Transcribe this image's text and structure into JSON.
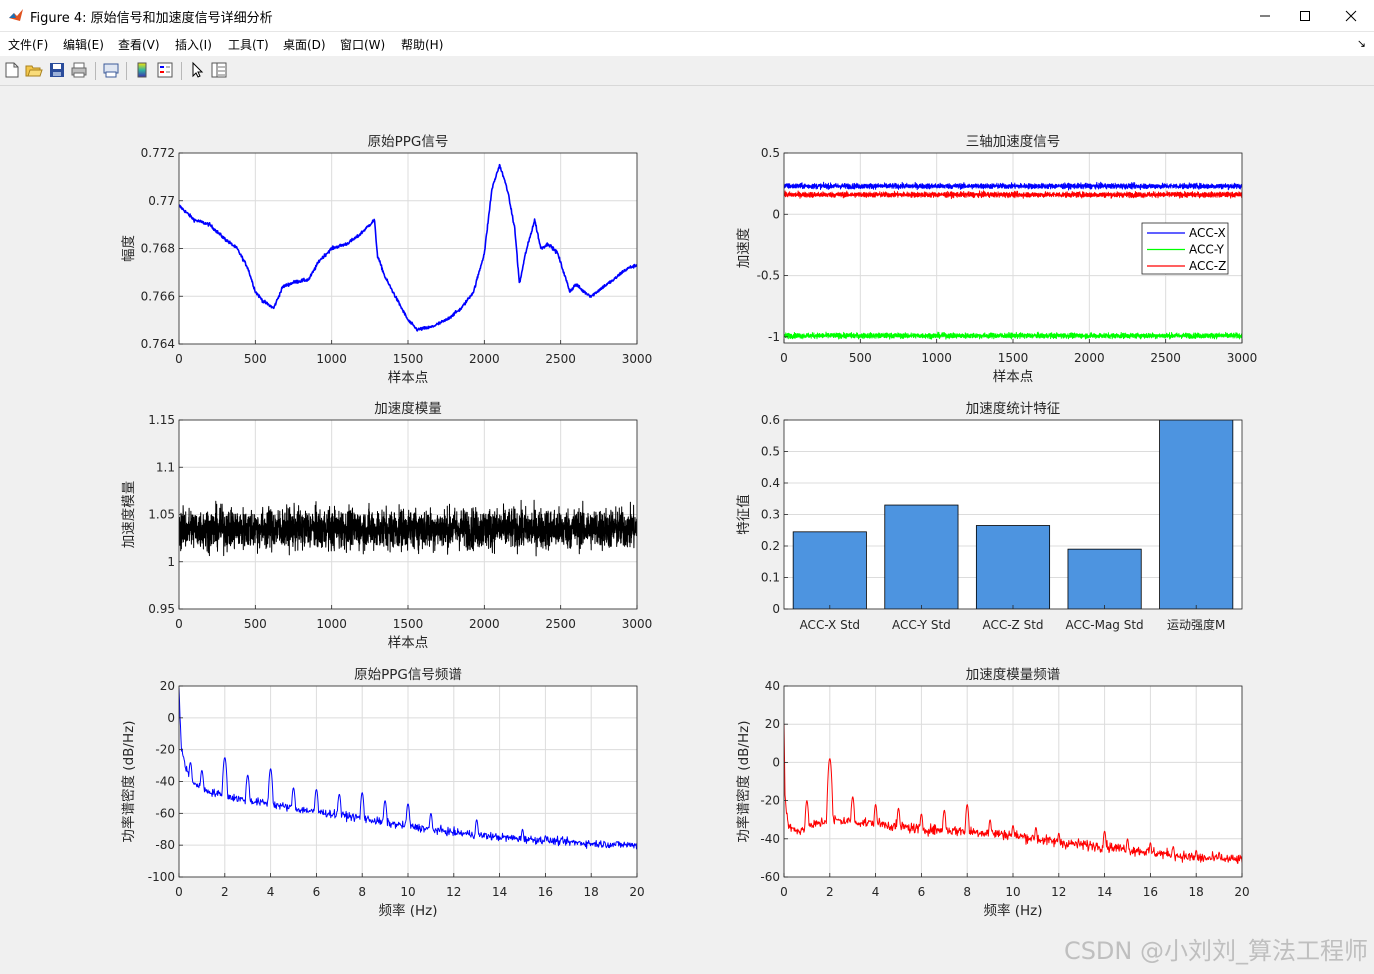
{
  "window": {
    "title": "Figure 4: 原始信号和加速度信号详细分析"
  },
  "menu": {
    "items": [
      "文件(F)",
      "编辑(E)",
      "查看(V)",
      "插入(I)",
      "工具(T)",
      "桌面(D)",
      "窗口(W)",
      "帮助(H)"
    ]
  },
  "toolbar": {
    "icons": [
      "new-figure-icon",
      "open-file-icon",
      "save-icon",
      "print-icon",
      "print-preview-icon",
      "colorbar-icon",
      "legend-icon",
      "pointer-icon",
      "property-editor-icon"
    ]
  },
  "watermark": "CSDN @小刘刘_算法工程师",
  "colors": {
    "blue": "#0000ff",
    "green": "#00ff00",
    "red": "#ff0000",
    "black": "#000000",
    "bar": "#4d94e0",
    "grid": "#dcdcdc"
  },
  "chart_data": [
    {
      "type": "line",
      "title": "原始PPG信号",
      "xlabel": "样本点",
      "ylabel": "幅度",
      "xlim": [
        0,
        3000
      ],
      "ylim": [
        0.764,
        0.772
      ],
      "xticks": [
        0,
        500,
        1000,
        1500,
        2000,
        2500,
        3000
      ],
      "xticklabels": [
        "0",
        "500",
        "1000",
        "1500",
        "2000",
        "2500",
        "3000"
      ],
      "yticks": [
        0.764,
        0.766,
        0.768,
        0.77,
        0.772
      ],
      "yticklabels": [
        "0.764",
        "0.766",
        "0.768",
        "0.77",
        "0.772"
      ],
      "grid": true,
      "series": [
        {
          "color": "#0000ff",
          "x": [
            0,
            100,
            200,
            300,
            380,
            450,
            500,
            550,
            620,
            680,
            760,
            850,
            920,
            1000,
            1100,
            1170,
            1250,
            1280,
            1300,
            1350,
            1400,
            1450,
            1500,
            1560,
            1650,
            1750,
            1850,
            1930,
            2000,
            2050,
            2100,
            2150,
            2200,
            2230,
            2270,
            2330,
            2370,
            2420,
            2480,
            2530,
            2560,
            2600,
            2650,
            2700,
            2780,
            2850,
            2900,
            2950,
            3000
          ],
          "y": [
            0.7698,
            0.7692,
            0.769,
            0.7684,
            0.768,
            0.7672,
            0.7662,
            0.7658,
            0.7655,
            0.7664,
            0.7666,
            0.7667,
            0.7675,
            0.768,
            0.7682,
            0.7685,
            0.769,
            0.7692,
            0.7677,
            0.7668,
            0.7662,
            0.7656,
            0.765,
            0.7646,
            0.7647,
            0.765,
            0.7655,
            0.7662,
            0.7678,
            0.7705,
            0.7715,
            0.7705,
            0.7688,
            0.7665,
            0.7678,
            0.7692,
            0.768,
            0.7682,
            0.7678,
            0.7668,
            0.7662,
            0.7665,
            0.7662,
            0.766,
            0.7664,
            0.7667,
            0.767,
            0.7672,
            0.7673
          ]
        }
      ]
    },
    {
      "type": "line",
      "title": "三轴加速度信号",
      "xlabel": "样本点",
      "ylabel": "加速度",
      "xlim": [
        0,
        3000
      ],
      "ylim": [
        -1.05,
        0.5
      ],
      "xticks": [
        0,
        500,
        1000,
        1500,
        2000,
        2500,
        3000
      ],
      "xticklabels": [
        "0",
        "500",
        "1000",
        "1500",
        "2000",
        "2500",
        "3000"
      ],
      "yticks": [
        -1,
        -0.5,
        0,
        0.5
      ],
      "yticklabels": [
        "-1",
        "-0.5",
        "0",
        "0.5"
      ],
      "grid": true,
      "legend": "right",
      "series": [
        {
          "name": "ACC-X",
          "color": "#0000ff",
          "mean": 0.23,
          "noise": 0.022,
          "n": 3000
        },
        {
          "name": "ACC-Y",
          "color": "#00ff00",
          "mean": -0.99,
          "noise": 0.022,
          "n": 3000
        },
        {
          "name": "ACC-Z",
          "color": "#ff0000",
          "mean": 0.16,
          "noise": 0.022,
          "n": 3000
        }
      ]
    },
    {
      "type": "line",
      "title": "加速度模量",
      "xlabel": "样本点",
      "ylabel": "加速度模量",
      "xlim": [
        0,
        3000
      ],
      "ylim": [
        0.95,
        1.15
      ],
      "xticks": [
        0,
        500,
        1000,
        1500,
        2000,
        2500,
        3000
      ],
      "xticklabels": [
        "0",
        "500",
        "1000",
        "1500",
        "2000",
        "2500",
        "3000"
      ],
      "yticks": [
        0.95,
        1,
        1.05,
        1.1,
        1.15
      ],
      "yticklabels": [
        "0.95",
        "1",
        "1.05",
        "1.1",
        "1.15"
      ],
      "grid": true,
      "series": [
        {
          "color": "#000000",
          "mean": 1.035,
          "noise": 0.022,
          "n": 3000
        }
      ]
    },
    {
      "type": "bar",
      "title": "加速度统计特征",
      "ylabel": "特征值",
      "ylim": [
        0,
        0.6
      ],
      "yticks": [
        0,
        0.1,
        0.2,
        0.3,
        0.4,
        0.5,
        0.6
      ],
      "yticklabels": [
        "0",
        "0.1",
        "0.2",
        "0.3",
        "0.4",
        "0.5",
        "0.6"
      ],
      "categories": [
        "ACC-X Std",
        "ACC-Y Std",
        "ACC-Z Std",
        "ACC-Mag Std",
        "运动强度M"
      ],
      "values": [
        0.245,
        0.33,
        0.265,
        0.19,
        0.6
      ],
      "color": "#4d94e0",
      "grid": true
    },
    {
      "type": "line",
      "title": "原始PPG信号频谱",
      "xlabel": "频率 (Hz)",
      "ylabel": "功率谱密度 (dB/Hz)",
      "xlim": [
        0,
        20
      ],
      "ylim": [
        -100,
        20
      ],
      "xticks": [
        0,
        2,
        4,
        6,
        8,
        10,
        12,
        14,
        16,
        18,
        20
      ],
      "xticklabels": [
        "0",
        "2",
        "4",
        "6",
        "8",
        "10",
        "12",
        "14",
        "16",
        "18",
        "20"
      ],
      "yticks": [
        -100,
        -80,
        -60,
        -40,
        -20,
        0,
        20
      ],
      "yticklabels": [
        "-100",
        "-80",
        "-60",
        "-40",
        "-20",
        "0",
        "20"
      ],
      "grid": true,
      "series": [
        {
          "color": "#0000ff",
          "x": [
            0,
            0.1,
            0.3,
            0.6,
            1,
            1.5,
            2,
            3,
            4,
            5,
            6,
            7,
            8,
            9,
            10,
            12,
            14,
            16,
            18,
            20
          ],
          "y": [
            18,
            -18,
            -32,
            -40,
            -45,
            -47,
            -49,
            -52,
            -54,
            -57,
            -59,
            -61,
            -63,
            -66,
            -68,
            -72,
            -75,
            -77,
            -79,
            -80
          ],
          "noise": 2.5,
          "peaks": [
            [
              0.5,
              -28
            ],
            [
              1,
              -33
            ],
            [
              2,
              -25
            ],
            [
              3,
              -36
            ],
            [
              4,
              -32
            ],
            [
              5,
              -44
            ],
            [
              6,
              -45
            ],
            [
              7,
              -48
            ],
            [
              8,
              -47
            ],
            [
              9,
              -52
            ],
            [
              10,
              -54
            ],
            [
              11,
              -60
            ],
            [
              13,
              -64
            ],
            [
              15,
              -70
            ],
            [
              16,
              -74
            ]
          ],
          "n": 900
        }
      ]
    },
    {
      "type": "line",
      "title": "加速度模量频谱",
      "xlabel": "频率 (Hz)",
      "ylabel": "功率谱密度 (dB/Hz)",
      "xlim": [
        0,
        20
      ],
      "ylim": [
        -60,
        40
      ],
      "xticks": [
        0,
        2,
        4,
        6,
        8,
        10,
        12,
        14,
        16,
        18,
        20
      ],
      "xticklabels": [
        "0",
        "2",
        "4",
        "6",
        "8",
        "10",
        "12",
        "14",
        "16",
        "18",
        "20"
      ],
      "yticks": [
        -60,
        -40,
        -20,
        0,
        20,
        40
      ],
      "yticklabels": [
        "-60",
        "-40",
        "-20",
        "0",
        "20",
        "40"
      ],
      "grid": true,
      "series": [
        {
          "color": "#ff0000",
          "x": [
            0,
            0.05,
            0.2,
            0.5,
            1,
            2,
            4,
            6,
            8,
            10,
            12,
            14,
            16,
            18,
            20
          ],
          "y": [
            20,
            -20,
            -33,
            -36,
            -34,
            -30,
            -32,
            -35,
            -36,
            -38,
            -42,
            -44,
            -47,
            -50,
            -51
          ],
          "noise": 2.8,
          "peaks": [
            [
              1,
              -20
            ],
            [
              2,
              2
            ],
            [
              3,
              -18
            ],
            [
              4,
              -22
            ],
            [
              5,
              -24
            ],
            [
              6,
              -27
            ],
            [
              7,
              -25
            ],
            [
              8,
              -22
            ],
            [
              9,
              -30
            ],
            [
              10,
              -33
            ],
            [
              11,
              -34
            ],
            [
              12,
              -37
            ],
            [
              14,
              -36
            ],
            [
              15,
              -40
            ],
            [
              16,
              -42
            ],
            [
              17,
              -44
            ],
            [
              18,
              -46
            ],
            [
              19,
              -47
            ]
          ],
          "n": 900
        }
      ]
    }
  ]
}
